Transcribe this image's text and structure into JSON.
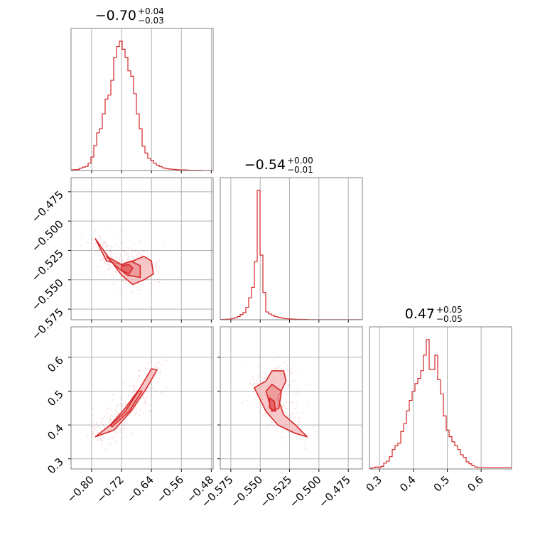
{
  "figure": {
    "type": "corner-plot",
    "accent_color": "#d62728",
    "fill_color": "#f4b6b7",
    "grid_color": "#b0b0b0",
    "frame_color": "#808080"
  },
  "chart_data": {
    "type": "corner",
    "parameters": [
      {
        "index": 0,
        "title": {
          "median": "−0.70",
          "plus": "+0.04",
          "minus": "−0.03"
        },
        "range": [
          -0.855,
          -0.475
        ],
        "ticks": [
          -0.8,
          -0.72,
          -0.64,
          -0.56,
          -0.48
        ],
        "tick_labels": [
          "−0.80",
          "−0.72",
          "−0.64",
          "−0.56",
          "−0.48"
        ],
        "hist": {
          "bin_start": -0.855,
          "bin_width": 0.0076,
          "counts": [
            0.5,
            0.7,
            0.8,
            1.8,
            2.5,
            3.0,
            5.5,
            10.0,
            18.5,
            28.0,
            31.0,
            42.0,
            53.0,
            56.0,
            67.0,
            84.0,
            92.0,
            96.0,
            90.0,
            84.0,
            74.0,
            70.0,
            57.0,
            42.0,
            31.0,
            18.0,
            13.0,
            9.0,
            7.5,
            5.5,
            4.0,
            3.0,
            2.0,
            1.5,
            1.2,
            1.0,
            0.8,
            0.6,
            0.5,
            0.5,
            0.4,
            0.3,
            0.2,
            0.2,
            0.2,
            0.2,
            0.1,
            0.1,
            0.1,
            0.1
          ]
        }
      },
      {
        "index": 1,
        "title": {
          "median": "−0.54",
          "plus": "+0.00",
          "minus": "−0.01"
        },
        "range": [
          -0.584,
          -0.463
        ],
        "ticks": [
          -0.575,
          -0.55,
          -0.525,
          -0.5,
          -0.475
        ],
        "tick_labels": [
          "−0.575",
          "−0.550",
          "−0.525",
          "−0.500",
          "−0.475"
        ],
        "hist": {
          "bin_start": -0.584,
          "bin_width": 0.00242,
          "counts": [
            0.2,
            0.3,
            0.4,
            0.5,
            1.0,
            1.5,
            2.5,
            4.0,
            5.5,
            9.5,
            17.0,
            25.0,
            45.0,
            100.0,
            50.0,
            21.0,
            6.0,
            4.5,
            3.5,
            2.5,
            2.0,
            1.5,
            1.0,
            0.8,
            0.6,
            0.5,
            0.4,
            0.3,
            0.3,
            0.2,
            0.2,
            0.1,
            0.1,
            0.1,
            0.1,
            0.1,
            0.1,
            0.1,
            0.1,
            0.1,
            0.1,
            0.1,
            0.1,
            0.1,
            0.1,
            0.1,
            0.1,
            0.1,
            0.1,
            0.1
          ]
        }
      },
      {
        "index": 2,
        "title": {
          "median": "0.47",
          "plus": "+0.05",
          "minus": "−0.05"
        },
        "range": [
          0.27,
          0.69
        ],
        "ticks": [
          0.3,
          0.4,
          0.5,
          0.6
        ],
        "tick_labels": [
          "0.3",
          "0.4",
          "0.5",
          "0.6"
        ],
        "hist": {
          "bin_start": 0.27,
          "bin_width": 0.0084,
          "counts": [
            0.5,
            1.0,
            1.5,
            1.0,
            2.0,
            4.5,
            6.0,
            9.5,
            15.0,
            18.0,
            20.0,
            29.0,
            35.0,
            45.0,
            53.0,
            60.0,
            66.0,
            70.0,
            76.0,
            88.0,
            100.0,
            77.0,
            77.0,
            88.0,
            69.0,
            58.0,
            41.0,
            30.0,
            25.0,
            21.0,
            18.0,
            15.0,
            11.0,
            9.0,
            5.5,
            4.0,
            2.5,
            1.5,
            1.0,
            1.0,
            1.0,
            1.0,
            1.0,
            1.0,
            1.0,
            1.0,
            1.0,
            1.0,
            1.0,
            1.0
          ]
        }
      }
    ],
    "pairs": [
      {
        "x": 0,
        "y": 1,
        "contours": [
          [
            [
              -0.79,
              -0.515
            ],
            [
              -0.76,
              -0.534
            ],
            [
              -0.72,
              -0.537
            ],
            [
              -0.69,
              -0.534
            ],
            [
              -0.66,
              -0.53
            ],
            [
              -0.64,
              -0.534
            ],
            [
              -0.635,
              -0.545
            ],
            [
              -0.66,
              -0.55
            ],
            [
              -0.69,
              -0.554
            ],
            [
              -0.72,
              -0.546
            ],
            [
              -0.75,
              -0.533
            ],
            [
              -0.79,
              -0.515
            ]
          ],
          [
            [
              -0.76,
              -0.53
            ],
            [
              -0.72,
              -0.537
            ],
            [
              -0.695,
              -0.534
            ],
            [
              -0.67,
              -0.538
            ],
            [
              -0.67,
              -0.548
            ],
            [
              -0.705,
              -0.546
            ],
            [
              -0.74,
              -0.537
            ],
            [
              -0.76,
              -0.53
            ]
          ],
          [
            [
              -0.72,
              -0.538
            ],
            [
              -0.7,
              -0.537
            ],
            [
              -0.69,
              -0.54
            ],
            [
              -0.7,
              -0.545
            ],
            [
              -0.72,
              -0.542
            ],
            [
              -0.72,
              -0.538
            ]
          ]
        ],
        "points_center": [
          -0.7,
          -0.54
        ]
      },
      {
        "x": 0,
        "y": 2,
        "contours": [
          [
            [
              -0.79,
              0.365
            ],
            [
              -0.75,
              0.4
            ],
            [
              -0.71,
              0.45
            ],
            [
              -0.67,
              0.51
            ],
            [
              -0.64,
              0.566
            ],
            [
              -0.625,
              0.563
            ],
            [
              -0.655,
              0.505
            ],
            [
              -0.695,
              0.44
            ],
            [
              -0.74,
              0.385
            ],
            [
              -0.79,
              0.365
            ]
          ],
          [
            [
              -0.75,
              0.398
            ],
            [
              -0.71,
              0.44
            ],
            [
              -0.675,
              0.5
            ],
            [
              -0.665,
              0.5
            ],
            [
              -0.7,
              0.44
            ],
            [
              -0.745,
              0.395
            ],
            [
              -0.75,
              0.398
            ]
          ]
        ],
        "points_center": [
          -0.7,
          0.47
        ]
      },
      {
        "x": 1,
        "y": 2,
        "contours": [
          [
            [
              -0.555,
              0.51
            ],
            [
              -0.545,
              0.53
            ],
            [
              -0.54,
              0.56
            ],
            [
              -0.53,
              0.56
            ],
            [
              -0.528,
              0.53
            ],
            [
              -0.535,
              0.48
            ],
            [
              -0.53,
              0.43
            ],
            [
              -0.52,
              0.4
            ],
            [
              -0.51,
              0.365
            ],
            [
              -0.52,
              0.375
            ],
            [
              -0.535,
              0.4
            ],
            [
              -0.545,
              0.44
            ],
            [
              -0.555,
              0.51
            ]
          ],
          [
            [
              -0.545,
              0.5
            ],
            [
              -0.54,
              0.52
            ],
            [
              -0.532,
              0.5
            ],
            [
              -0.534,
              0.45
            ],
            [
              -0.54,
              0.44
            ],
            [
              -0.545,
              0.5
            ]
          ],
          [
            [
              -0.542,
              0.48
            ],
            [
              -0.538,
              0.47
            ],
            [
              -0.537,
              0.44
            ],
            [
              -0.542,
              0.45
            ],
            [
              -0.542,
              0.48
            ]
          ]
        ],
        "points_center": [
          -0.54,
          0.47
        ]
      }
    ]
  }
}
